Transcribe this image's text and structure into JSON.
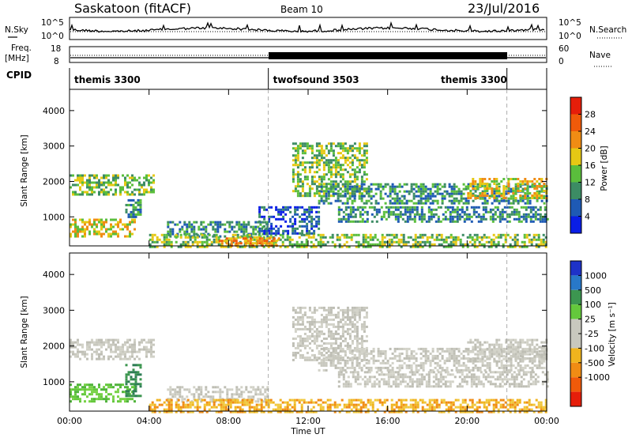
{
  "header": {
    "title": "Saskatoon (fitACF)",
    "beam": "Beam 10",
    "date": "23/Jul/2016"
  },
  "noise_panel": {
    "left_label": "N.Sky",
    "right_label": "N.Search",
    "left_ticks": [
      "10^5",
      "10^0"
    ],
    "right_ticks": [
      "10^5",
      "10^0"
    ]
  },
  "freq_panel": {
    "left_label_1": "Freq.",
    "left_label_2": "[MHz]",
    "right_label": "Nave",
    "left_ticks": [
      "18",
      "8"
    ],
    "right_ticks": [
      "60",
      "0"
    ]
  },
  "cpid": {
    "label": "CPID",
    "segments": [
      {
        "name": "themis 3300",
        "start_hr": 0,
        "end_hr": 10
      },
      {
        "name": "twofsound 3503",
        "start_hr": 10,
        "end_hr": 22
      },
      {
        "name": "themis 3300",
        "start_hr": 22,
        "end_hr": 24
      }
    ]
  },
  "colors": {
    "power": [
      "#0a1ee6",
      "#1e5ab4",
      "#3c8c64",
      "#5abe3c",
      "#e6c814",
      "#f08c14",
      "#f05a0a",
      "#e61e0a"
    ],
    "velocity": [
      "#1e32c8",
      "#2878c8",
      "#3c9650",
      "#64c83c",
      "#c8c8be",
      "#c8c8be",
      "#f0b41e",
      "#f08c14",
      "#f05a0a",
      "#e61e0a"
    ]
  },
  "chart_data": [
    {
      "type": "heatmap",
      "title": "Power",
      "xlabel": "Time UT",
      "ylabel": "Slant Range [km]",
      "x_ticks": [
        "00:00",
        "04:00",
        "08:00",
        "12:00",
        "16:00",
        "20:00",
        "00:00"
      ],
      "xlim_hours": [
        0,
        24
      ],
      "ylim": [
        180,
        4600
      ],
      "y_ticks": [
        1000,
        2000,
        3000,
        4000
      ],
      "colorbar_label": "Power [dB]",
      "colorbar_ticks": [
        4,
        8,
        12,
        16,
        20,
        24,
        28
      ],
      "colorbar_range": [
        0,
        32
      ],
      "bands": [
        {
          "t0": 0.0,
          "t1": 4.2,
          "r0": 1650,
          "r1": 2200,
          "level": 3
        },
        {
          "t0": 0.0,
          "t1": 3.3,
          "r0": 470,
          "r1": 950,
          "level": 4
        },
        {
          "t0": 2.8,
          "t1": 3.6,
          "r0": 1000,
          "r1": 1500,
          "level": 2
        },
        {
          "t0": 4.9,
          "t1": 10.0,
          "r0": 420,
          "r1": 880,
          "level": 2
        },
        {
          "t0": 4.0,
          "t1": 24.0,
          "r0": 180,
          "r1": 520,
          "level": 3
        },
        {
          "t0": 7.5,
          "t1": 10.5,
          "r0": 180,
          "r1": 420,
          "level": 5
        },
        {
          "t0": 11.2,
          "t1": 15.0,
          "r0": 1600,
          "r1": 3100,
          "level": 3
        },
        {
          "t0": 12.5,
          "t1": 24.0,
          "r0": 1350,
          "r1": 1950,
          "level": 2
        },
        {
          "t0": 13.5,
          "t1": 24.0,
          "r0": 850,
          "r1": 1300,
          "level": 2
        },
        {
          "t0": 20.0,
          "t1": 24.0,
          "r0": 1550,
          "r1": 2100,
          "level": 4
        },
        {
          "t0": 9.5,
          "t1": 12.5,
          "r0": 500,
          "r1": 1300,
          "level": 1
        }
      ]
    },
    {
      "type": "heatmap",
      "title": "Velocity",
      "xlabel": "Time UT",
      "ylabel": "Slant Range [km]",
      "x_ticks": [
        "00:00",
        "04:00",
        "08:00",
        "12:00",
        "16:00",
        "20:00",
        "00:00"
      ],
      "xlim_hours": [
        0,
        24
      ],
      "ylim": [
        180,
        4600
      ],
      "y_ticks": [
        1000,
        2000,
        3000,
        4000
      ],
      "colorbar_label": "Velocity [m s⁻¹]",
      "colorbar_ticks": [
        "1000",
        "500",
        "100",
        "25",
        "-25",
        "-100",
        "-500",
        "-1000"
      ],
      "bands": [
        {
          "t0": 0.0,
          "t1": 4.2,
          "r0": 1650,
          "r1": 2200,
          "class": "gray"
        },
        {
          "t0": 0.0,
          "t1": 3.3,
          "r0": 470,
          "r1": 950,
          "class": "green"
        },
        {
          "t0": 2.8,
          "t1": 3.6,
          "r0": 600,
          "r1": 1500,
          "class": "darkgreen"
        },
        {
          "t0": 4.9,
          "t1": 10.0,
          "r0": 420,
          "r1": 880,
          "class": "gray"
        },
        {
          "t0": 4.0,
          "t1": 24.0,
          "r0": 180,
          "r1": 520,
          "class": "orange"
        },
        {
          "t0": 11.2,
          "t1": 15.0,
          "r0": 1600,
          "r1": 3100,
          "class": "gray"
        },
        {
          "t0": 12.5,
          "t1": 24.0,
          "r0": 1350,
          "r1": 1950,
          "class": "gray"
        },
        {
          "t0": 13.5,
          "t1": 24.0,
          "r0": 850,
          "r1": 1300,
          "class": "gray"
        },
        {
          "t0": 20.0,
          "t1": 24.0,
          "r0": 1550,
          "r1": 2200,
          "class": "gray"
        }
      ]
    }
  ]
}
